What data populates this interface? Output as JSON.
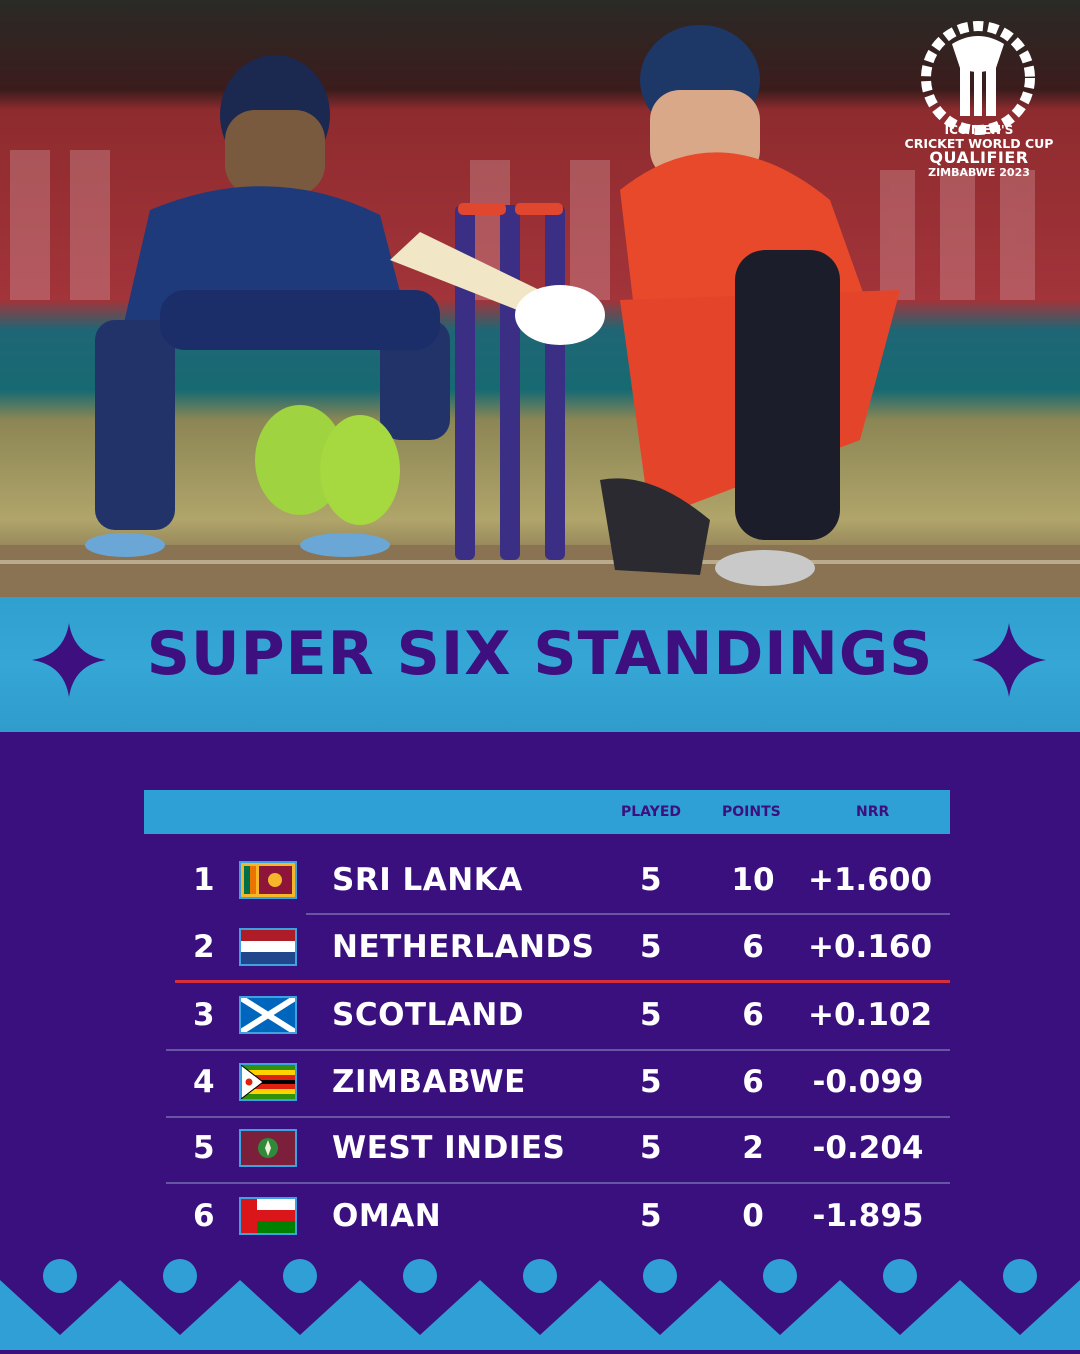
{
  "logo": {
    "line1": "ICC MEN'S",
    "line2": "CRICKET WORLD CUP",
    "line3": "QUALIFIER",
    "line4": "ZIMBABWE 2023"
  },
  "banner": {
    "title": "SUPER SIX STANDINGS"
  },
  "table": {
    "headers": {
      "rank": "",
      "team": "",
      "played": "PLAYED",
      "points": "POINTS",
      "nrr": "NRR"
    },
    "rows": [
      {
        "rank": "1",
        "team": "SRI LANKA",
        "flag": "sri-lanka-flag-icon",
        "played": "5",
        "points": "10",
        "nrr": "+1.600"
      },
      {
        "rank": "2",
        "team": "NETHERLANDS",
        "flag": "netherlands-flag-icon",
        "played": "5",
        "points": "6",
        "nrr": "+0.160"
      },
      {
        "rank": "3",
        "team": "SCOTLAND",
        "flag": "scotland-flag-icon",
        "played": "5",
        "points": "6",
        "nrr": "+0.102"
      },
      {
        "rank": "4",
        "team": "ZIMBABWE",
        "flag": "zimbabwe-flag-icon",
        "played": "5",
        "points": "6",
        "nrr": "-0.099"
      },
      {
        "rank": "5",
        "team": "WEST INDIES",
        "flag": "west-indies-flag-icon",
        "played": "5",
        "points": "2",
        "nrr": "-0.204"
      },
      {
        "rank": "6",
        "team": "OMAN",
        "flag": "oman-flag-icon",
        "played": "5",
        "points": "0",
        "nrr": "-1.895"
      }
    ]
  },
  "colors": {
    "background": "#3a0f7e",
    "banner": "#35a6d6",
    "title_text": "#3d0f7f",
    "qualification_line": "#d32f3c"
  }
}
